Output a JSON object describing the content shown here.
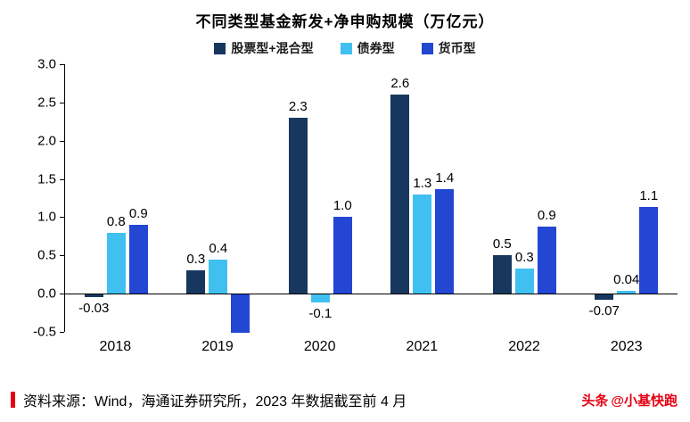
{
  "chart_data": {
    "type": "bar",
    "title": "不同类型基金新发+净申购规模（万亿元）",
    "categories": [
      "2018",
      "2019",
      "2020",
      "2021",
      "2022",
      "2023"
    ],
    "series": [
      {
        "name": "股票型+混合型",
        "color": "#17375e",
        "values": [
          -0.03,
          0.3,
          2.3,
          2.6,
          0.5,
          -0.07
        ],
        "labels": [
          "-0.03",
          "0.3",
          "2.3",
          "2.6",
          "0.5",
          "-0.07"
        ]
      },
      {
        "name": "债券型",
        "color": "#3fc0f0",
        "values": [
          0.8,
          0.45,
          -0.1,
          1.3,
          0.33,
          0.04
        ],
        "labels": [
          "0.8",
          "0.4",
          "-0.1",
          "1.3",
          "0.3",
          "0.04"
        ]
      },
      {
        "name": "货币型",
        "color": "#2346d3",
        "values": [
          0.9,
          -0.5,
          1.0,
          1.37,
          0.88,
          1.13
        ],
        "labels": [
          "0.9",
          "",
          "1.0",
          "1.4",
          "0.9",
          "1.1"
        ]
      }
    ],
    "ylim": [
      -0.5,
      3.0
    ],
    "yticks": [
      "3.0",
      "2.5",
      "2.0",
      "1.5",
      "1.0",
      "0.5",
      "0.0",
      "-0.5"
    ],
    "grid": false,
    "legend_position": "top"
  },
  "footer": {
    "source": "资料来源：Wind，海通证券研究所，2023 年数据截至前 4 月"
  },
  "watermark": {
    "brand": "头条",
    "handle": "@小基快跑"
  },
  "colors": {
    "accent_red": "#e60012",
    "axis": "#000000",
    "background": "#ffffff"
  }
}
